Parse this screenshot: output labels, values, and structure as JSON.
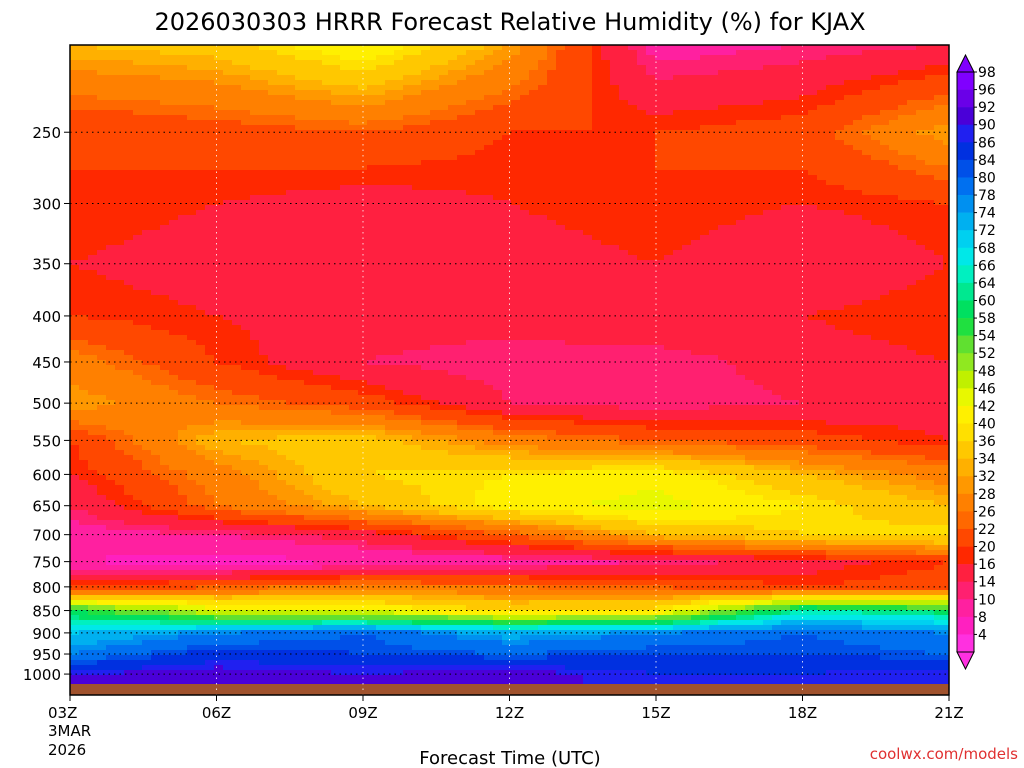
{
  "chart_data": {
    "type": "heatmap",
    "title": "2026030303 HRRR Forecast Relative Humidity (%) for KJAX",
    "xlabel": "Forecast Time (UTC)",
    "ylabel": "",
    "credit": "coolwx.com/models",
    "x_ticks": [
      "03Z",
      "06Z",
      "09Z",
      "12Z",
      "15Z",
      "18Z",
      "21Z"
    ],
    "x_start_extra": [
      "3MAR",
      "2026"
    ],
    "y_ticks": [
      "250",
      "300",
      "350",
      "400",
      "450",
      "500",
      "550",
      "600",
      "650",
      "700",
      "750",
      "800",
      "850",
      "900",
      "950",
      "1000"
    ],
    "y_scale": "log-pressure (hPa, inverted)",
    "grid": true,
    "colorbar_labels": [
      "98",
      "96",
      "92",
      "90",
      "86",
      "84",
      "80",
      "78",
      "74",
      "72",
      "68",
      "66",
      "64",
      "60",
      "58",
      "54",
      "52",
      "48",
      "46",
      "42",
      "40",
      "36",
      "34",
      "32",
      "28",
      "26",
      "22",
      "20",
      "16",
      "14",
      "10",
      "8",
      "4"
    ],
    "colorbar_colors": [
      "#8000ff",
      "#6a00e8",
      "#4a00d8",
      "#2020f0",
      "#0030e0",
      "#0050e8",
      "#0070f0",
      "#0090f0",
      "#00b0f0",
      "#00d0f0",
      "#00e8e8",
      "#00f0c0",
      "#00e890",
      "#00e060",
      "#20e040",
      "#60e030",
      "#90e820",
      "#c0f000",
      "#e8f800",
      "#fff000",
      "#ffe000",
      "#ffc800",
      "#ffb000",
      "#ff9800",
      "#ff8000",
      "#ff6800",
      "#ff4800",
      "#ff2800",
      "#ff2040",
      "#ff2070",
      "#ff20a0",
      "#ff20c0",
      "#ff30e0"
    ],
    "rh_profile": {
      "x_hours": [
        3,
        6,
        9,
        12,
        15,
        18,
        21
      ],
      "levels_hpa": [
        200,
        250,
        300,
        350,
        400,
        450,
        500,
        550,
        600,
        650,
        700,
        750,
        800,
        850,
        900,
        950,
        1000
      ],
      "rh_percent": [
        [
          36,
          38,
          46,
          34,
          12,
          14,
          16
        ],
        [
          22,
          24,
          26,
          22,
          22,
          24,
          34
        ],
        [
          22,
          20,
          18,
          20,
          22,
          20,
          22
        ],
        [
          20,
          18,
          16,
          18,
          20,
          16,
          20
        ],
        [
          22,
          20,
          18,
          18,
          20,
          20,
          22
        ],
        [
          30,
          22,
          16,
          14,
          14,
          18,
          20
        ],
        [
          34,
          28,
          24,
          16,
          14,
          16,
          18
        ],
        [
          22,
          36,
          38,
          30,
          26,
          24,
          20
        ],
        [
          20,
          30,
          40,
          42,
          44,
          36,
          30
        ],
        [
          16,
          28,
          36,
          44,
          48,
          42,
          36
        ],
        [
          12,
          14,
          18,
          26,
          36,
          40,
          42
        ],
        [
          10,
          8,
          10,
          12,
          14,
          18,
          22
        ],
        [
          22,
          26,
          30,
          28,
          26,
          22,
          24
        ],
        [
          60,
          48,
          46,
          40,
          42,
          66,
          62
        ],
        [
          74,
          80,
          84,
          76,
          80,
          84,
          80
        ],
        [
          80,
          88,
          86,
          84,
          86,
          86,
          84
        ],
        [
          92,
          94,
          92,
          94,
          90,
          90,
          92
        ]
      ]
    }
  }
}
